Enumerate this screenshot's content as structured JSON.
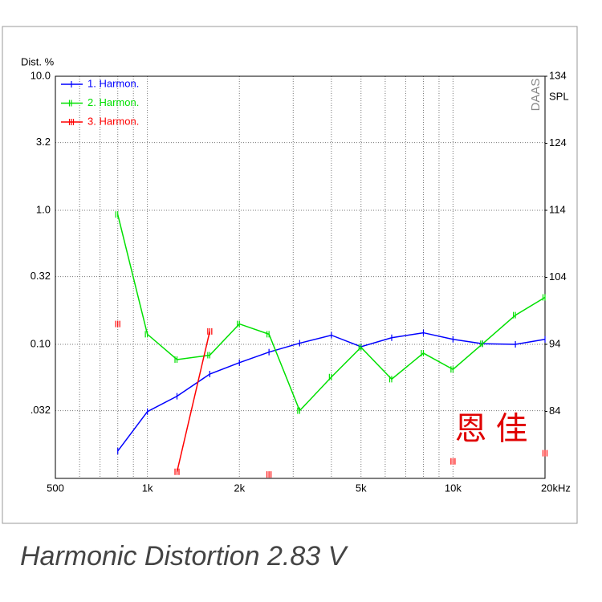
{
  "chart_data": {
    "type": "line",
    "caption": "Harmonic Distortion 2.83 V",
    "ylabel": "Dist. %",
    "y2label": "SPL",
    "logo": "DAAS",
    "watermark": "恩 佳",
    "x": [
      800,
      1000,
      1250,
      1600,
      2000,
      2500,
      3150,
      4000,
      5000,
      6300,
      8000,
      10000,
      12500,
      16000,
      20000
    ],
    "xlim": [
      500,
      20000
    ],
    "xlog": true,
    "xticks": [
      500,
      {
        "value": 1000,
        "label": "1k"
      },
      {
        "value": 2000,
        "label": "2k"
      },
      {
        "value": 5000,
        "label": "5k"
      },
      {
        "value": 10000,
        "label": "10k"
      },
      {
        "value": 20000,
        "label": "20kHz"
      }
    ],
    "xminor": [
      600,
      700,
      800,
      900,
      3000,
      4000,
      6000,
      7000,
      8000,
      9000
    ],
    "ylim": [
      0.01,
      10
    ],
    "ylog": true,
    "yticks": [
      {
        "value": 10,
        "label": "10.0"
      },
      3.2,
      {
        "value": 1,
        "label": "1.0"
      },
      0.32,
      {
        "value": 0.1,
        "label": "0.10"
      },
      {
        "value": 0.032,
        "label": ".032"
      }
    ],
    "y2lim": [
      74,
      134
    ],
    "y2ticks": [
      84,
      94,
      104,
      114,
      124,
      134
    ],
    "grid": true,
    "legend": "upper left",
    "series": [
      {
        "name": "1. Harmon.",
        "color": "#0000ff",
        "values": [
          0.016,
          0.0315,
          0.041,
          0.06,
          0.073,
          0.0875,
          0.102,
          0.117,
          0.096,
          0.112,
          0.122,
          0.109,
          0.101,
          0.1,
          0.109
        ]
      },
      {
        "name": "2. Harmon.",
        "color": "#00e000",
        "values": [
          0.93,
          0.119,
          0.077,
          0.083,
          0.142,
          0.119,
          0.032,
          0.057,
          0.095,
          0.055,
          0.086,
          0.065,
          0.101,
          0.165,
          0.224
        ]
      },
      {
        "name": "3. Harmon.",
        "color": "#ff0000",
        "values": [
          0.142,
          null,
          0.0112,
          0.125,
          null,
          0.0107,
          null,
          null,
          null,
          null,
          null,
          0.0134,
          null,
          null,
          0.0154
        ]
      }
    ]
  }
}
